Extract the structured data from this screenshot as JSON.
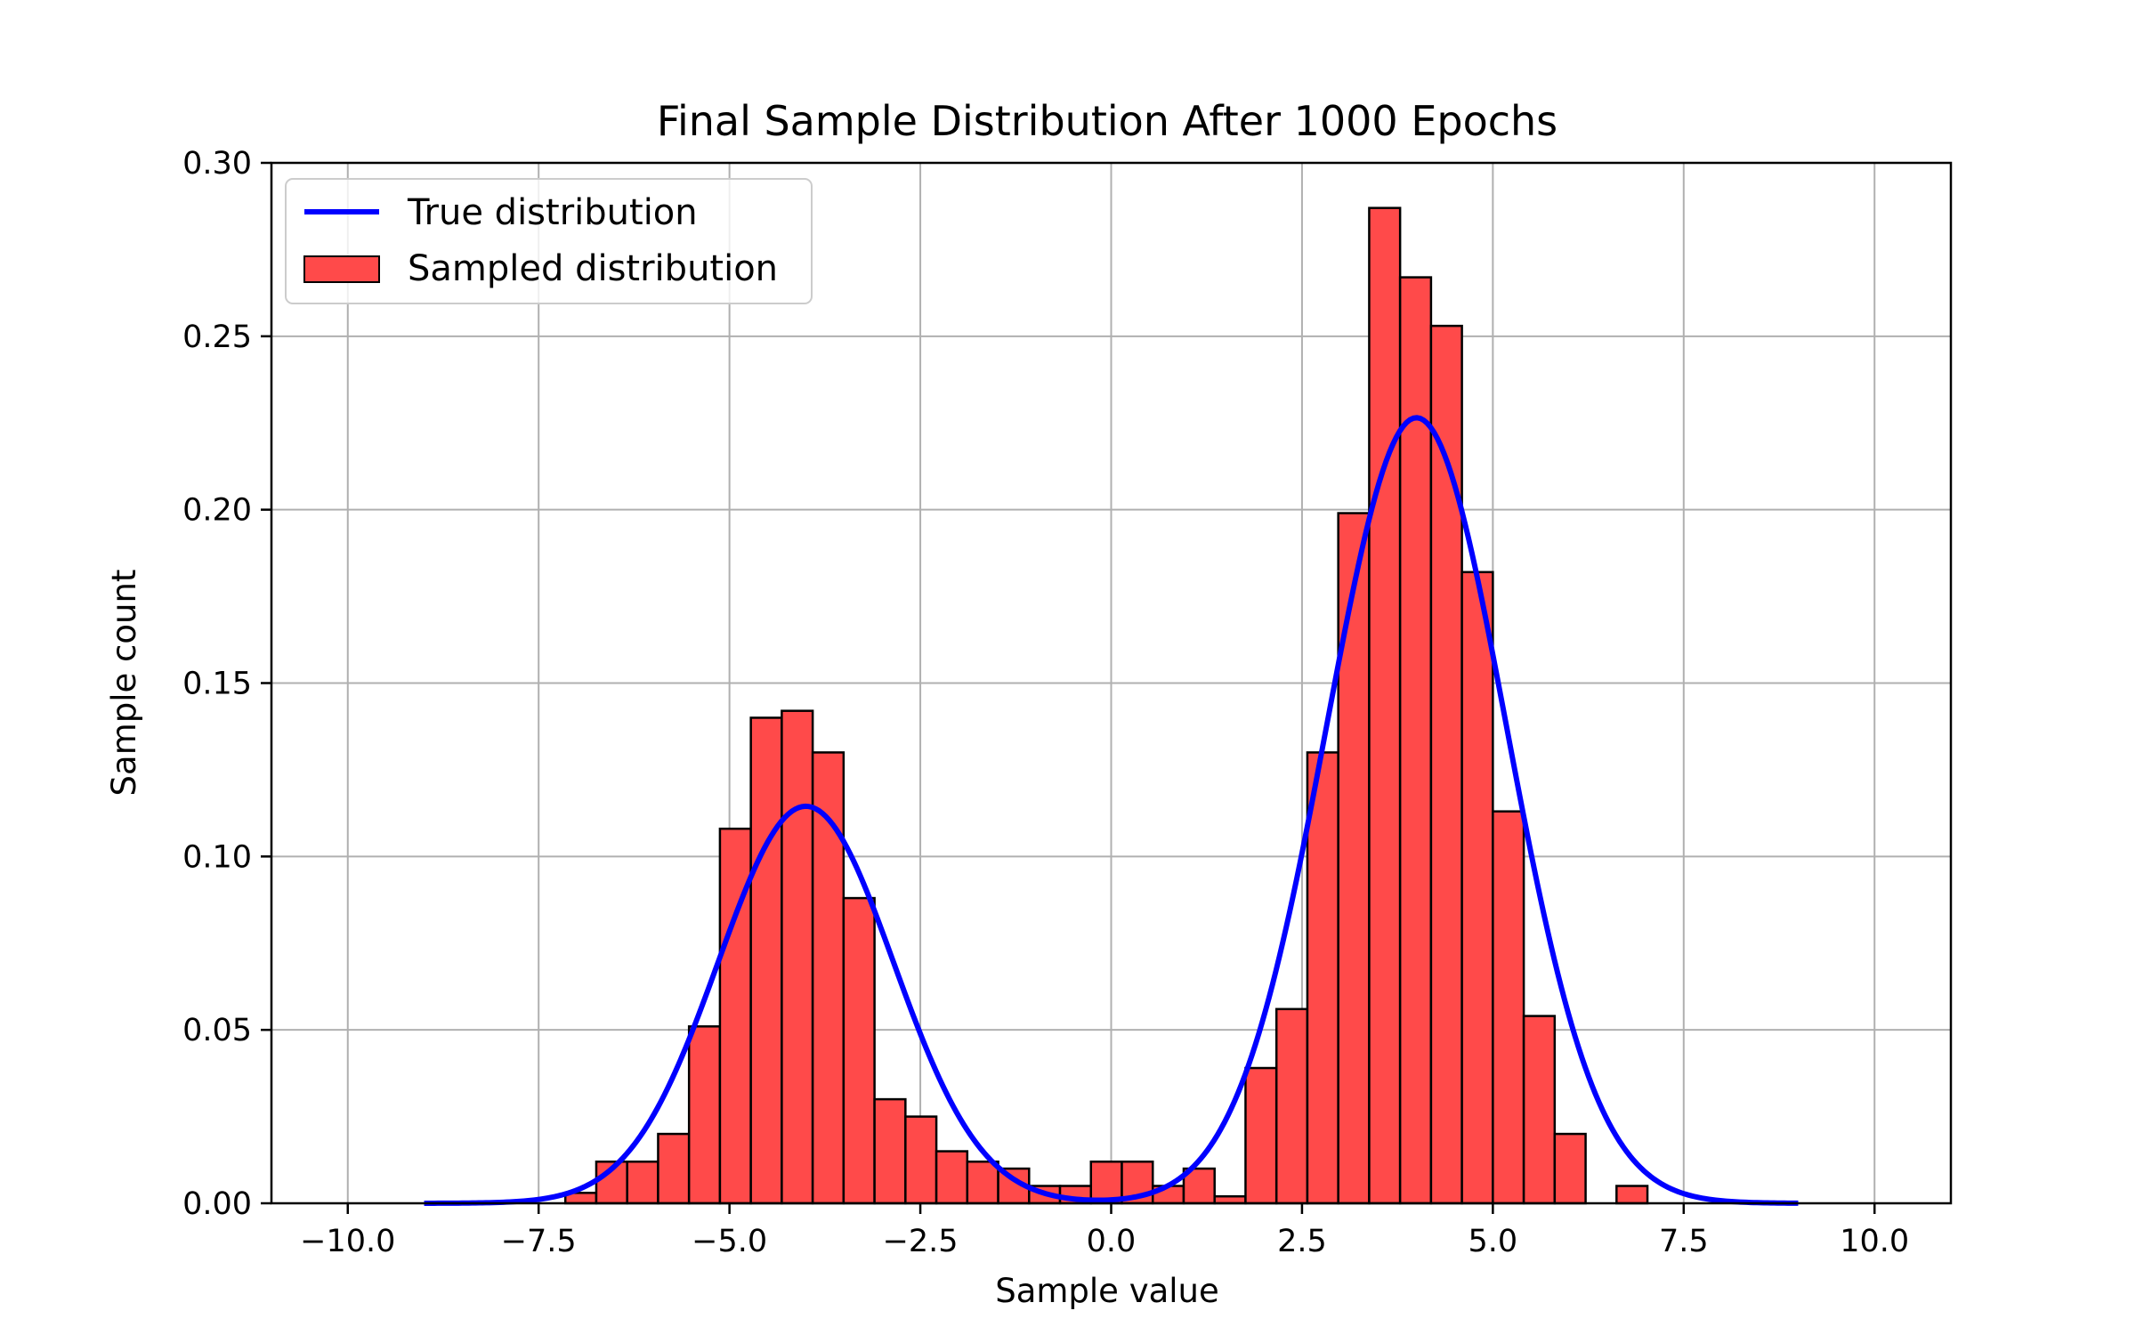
{
  "chart_data": {
    "type": "bar",
    "title": "Final Sample Distribution After 1000 Epochs",
    "xlabel": "Sample value",
    "ylabel": "Sample count",
    "xlim": [
      -11.0,
      11.0
    ],
    "ylim": [
      0.0,
      0.3
    ],
    "grid": true,
    "legend_position": "top-left",
    "x_ticks": [
      -10.0,
      -7.5,
      -5.0,
      -2.5,
      0.0,
      2.5,
      5.0,
      7.5,
      10.0
    ],
    "x_tick_labels": [
      "−10.0",
      "−7.5",
      "−5.0",
      "−2.5",
      "0.0",
      "2.5",
      "5.0",
      "7.5",
      "10.0"
    ],
    "y_ticks": [
      0.0,
      0.05,
      0.1,
      0.15,
      0.2,
      0.25,
      0.3
    ],
    "y_tick_labels": [
      "0.00",
      "0.05",
      "0.10",
      "0.15",
      "0.20",
      "0.25",
      "0.30"
    ],
    "histogram": {
      "name": "Sampled distribution",
      "color": "#ff4a4a",
      "edge_color": "#000000",
      "bin_start": -7.15,
      "bin_width": 0.405,
      "values": [
        0.003,
        0.012,
        0.012,
        0.02,
        0.051,
        0.108,
        0.14,
        0.142,
        0.13,
        0.088,
        0.03,
        0.025,
        0.015,
        0.012,
        0.01,
        0.005,
        0.005,
        0.012,
        0.012,
        0.005,
        0.01,
        0.002,
        0.039,
        0.056,
        0.13,
        0.199,
        0.287,
        0.267,
        0.253,
        0.182,
        0.113,
        0.054,
        0.02,
        0.0,
        0.005
      ]
    },
    "curve": {
      "name": "True distribution",
      "color": "#0000ff",
      "x_range": [
        -9.0,
        9.0
      ],
      "components": [
        {
          "weight": 0.33,
          "mean": -4.0,
          "std": 1.15
        },
        {
          "weight": 0.67,
          "mean": 4.0,
          "std": 1.18
        }
      ]
    }
  }
}
